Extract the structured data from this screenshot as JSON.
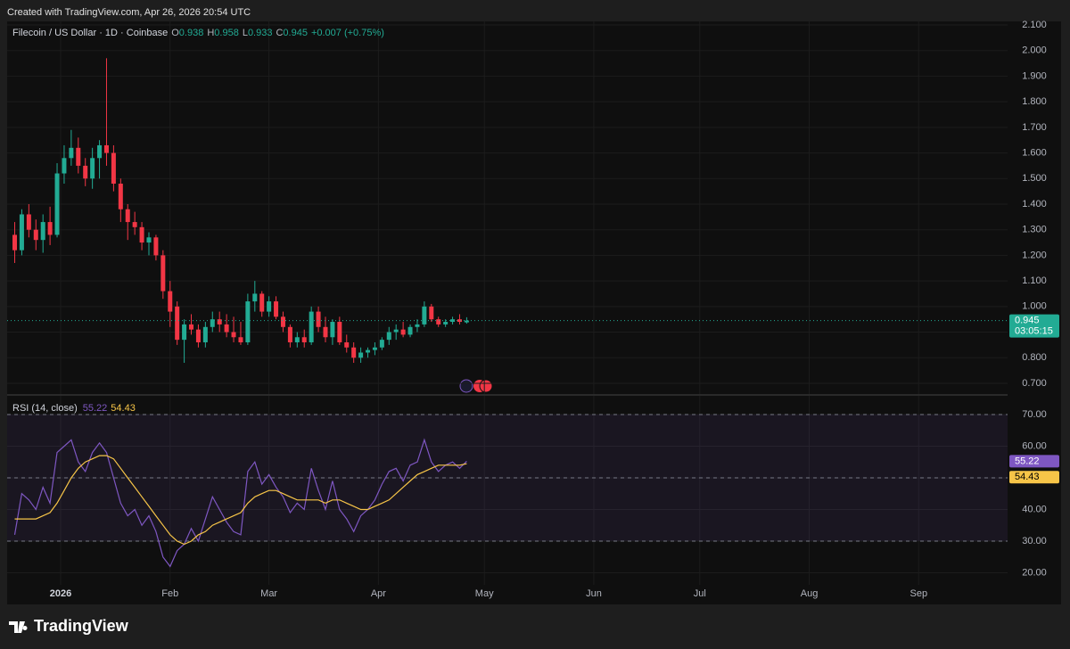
{
  "header": {
    "created": "Created with TradingView.com, Apr 26, 2026 20:54 UTC"
  },
  "footer": {
    "brand": "TradingView"
  },
  "chart_data": [
    {
      "type": "candlestick",
      "title": "Filecoin / US Dollar · 1D · Coinbase",
      "legend_keys": [
        "O",
        "H",
        "L",
        "C"
      ],
      "change": "+0.007 (+0.75%)",
      "countdown": "03:05:15",
      "x": [
        -12,
        -10,
        -8,
        -6,
        -4,
        -2,
        0,
        2,
        4,
        6,
        8,
        10,
        12,
        14,
        16,
        18,
        20,
        22,
        24,
        26,
        28,
        30,
        32,
        34,
        36,
        38,
        40,
        42,
        44,
        46,
        48,
        50,
        52,
        54,
        56,
        58,
        60,
        62,
        64,
        66,
        68,
        70,
        72,
        74,
        76,
        78,
        80,
        82,
        84,
        86,
        88,
        90,
        92,
        94,
        96,
        98,
        100,
        102,
        104,
        106,
        108,
        110,
        112,
        114,
        116
      ],
      "open": [
        1.28,
        1.22,
        1.36,
        1.3,
        1.26,
        1.33,
        1.28,
        1.52,
        1.58,
        1.62,
        1.55,
        1.5,
        1.58,
        1.63,
        1.6,
        1.48,
        1.38,
        1.33,
        1.31,
        1.25,
        1.27,
        1.2,
        1.06,
        1.0,
        0.87,
        0.93,
        0.91,
        0.86,
        0.92,
        0.95,
        0.93,
        0.9,
        0.88,
        0.86,
        1.02,
        1.05,
        0.98,
        1.02,
        0.96,
        0.92,
        0.86,
        0.88,
        0.86,
        0.98,
        0.92,
        0.88,
        0.94,
        0.86,
        0.84,
        0.8,
        0.82,
        0.83,
        0.84,
        0.87,
        0.9,
        0.91,
        0.89,
        0.92,
        0.93,
        1.0,
        0.95,
        0.93,
        0.94,
        0.95,
        0.938
      ],
      "high": [
        1.33,
        1.38,
        1.4,
        1.34,
        1.36,
        1.39,
        1.56,
        1.63,
        1.69,
        1.66,
        1.58,
        1.62,
        1.65,
        1.97,
        1.63,
        1.5,
        1.4,
        1.37,
        1.33,
        1.29,
        1.28,
        1.22,
        1.1,
        1.02,
        0.95,
        0.97,
        0.93,
        0.94,
        0.98,
        0.98,
        0.97,
        0.96,
        0.94,
        1.05,
        1.1,
        1.06,
        1.04,
        1.04,
        0.98,
        0.93,
        0.9,
        0.91,
        1.0,
        1.0,
        0.96,
        0.95,
        0.96,
        0.89,
        0.86,
        0.84,
        0.84,
        0.86,
        0.88,
        0.92,
        0.93,
        0.94,
        0.93,
        0.95,
        1.02,
        1.01,
        0.96,
        0.95,
        0.96,
        0.97,
        0.958
      ],
      "low": [
        1.17,
        1.2,
        1.27,
        1.22,
        1.21,
        1.24,
        1.27,
        1.48,
        1.55,
        1.52,
        1.47,
        1.46,
        1.5,
        1.55,
        1.45,
        1.33,
        1.26,
        1.28,
        1.22,
        1.2,
        1.18,
        1.03,
        0.92,
        0.85,
        0.78,
        0.89,
        0.84,
        0.84,
        0.9,
        0.9,
        0.88,
        0.86,
        0.85,
        0.85,
        0.98,
        0.96,
        0.96,
        0.95,
        0.9,
        0.84,
        0.84,
        0.84,
        0.85,
        0.9,
        0.86,
        0.85,
        0.85,
        0.82,
        0.78,
        0.78,
        0.8,
        0.81,
        0.83,
        0.85,
        0.87,
        0.88,
        0.88,
        0.9,
        0.92,
        0.94,
        0.92,
        0.92,
        0.93,
        0.93,
        0.933
      ],
      "close": [
        1.22,
        1.36,
        1.3,
        1.26,
        1.33,
        1.28,
        1.52,
        1.58,
        1.62,
        1.55,
        1.5,
        1.58,
        1.63,
        1.6,
        1.48,
        1.38,
        1.33,
        1.31,
        1.25,
        1.27,
        1.2,
        1.06,
        0.98,
        0.87,
        0.93,
        0.91,
        0.86,
        0.92,
        0.95,
        0.93,
        0.9,
        0.88,
        0.86,
        1.02,
        1.05,
        0.98,
        1.02,
        0.96,
        0.92,
        0.86,
        0.88,
        0.86,
        0.98,
        0.92,
        0.88,
        0.94,
        0.86,
        0.84,
        0.8,
        0.82,
        0.83,
        0.84,
        0.87,
        0.9,
        0.91,
        0.89,
        0.92,
        0.93,
        1.0,
        0.95,
        0.93,
        0.94,
        0.95,
        0.94,
        0.945
      ],
      "up_color": "#22ab94",
      "down_color": "#f23645",
      "xlim": [
        -14.15,
        269.18
      ],
      "xticks": [
        {
          "value": 1,
          "label": "2026"
        },
        {
          "value": 32,
          "label": "Feb"
        },
        {
          "value": 60,
          "label": "Mar"
        },
        {
          "value": 91,
          "label": "Apr"
        },
        {
          "value": 121,
          "label": "May"
        },
        {
          "value": 152,
          "label": "Jun"
        },
        {
          "value": 182,
          "label": "Jul"
        },
        {
          "value": 213,
          "label": "Aug"
        },
        {
          "value": 244,
          "label": "Sep"
        }
      ],
      "ylim": [
        0.658,
        2.114
      ],
      "yticks": [
        {
          "value": 0.7,
          "label": "0.700"
        },
        {
          "value": 0.8,
          "label": "0.800"
        },
        {
          "value": 0.9,
          "label": "0.900"
        },
        {
          "value": 1.0,
          "label": "1.000"
        },
        {
          "value": 1.1,
          "label": "1.100"
        },
        {
          "value": 1.2,
          "label": "1.200"
        },
        {
          "value": 1.3,
          "label": "1.300"
        },
        {
          "value": 1.4,
          "label": "1.400"
        },
        {
          "value": 1.5,
          "label": "1.500"
        },
        {
          "value": 1.6,
          "label": "1.600"
        },
        {
          "value": 1.7,
          "label": "1.700"
        },
        {
          "value": 1.8,
          "label": "1.800"
        },
        {
          "value": 1.9,
          "label": "1.900"
        },
        {
          "value": 2.0,
          "label": "2.000"
        },
        {
          "value": 2.1,
          "label": "2.100"
        }
      ],
      "grid": true
    },
    {
      "type": "line",
      "series": [
        {
          "name": "RSI (14, close)",
          "color": "#7e57c2",
          "values": [
            32,
            45,
            43,
            40,
            47,
            42,
            58,
            60,
            62,
            55,
            52,
            58,
            61,
            58,
            50,
            42,
            38,
            40,
            35,
            38,
            33,
            25,
            22,
            27,
            29,
            34,
            30,
            37,
            44,
            40,
            36,
            33,
            32,
            52,
            55,
            48,
            51,
            47,
            44,
            39,
            42,
            40,
            53,
            46,
            40,
            49,
            40,
            37,
            33,
            38,
            40,
            43,
            48,
            52,
            53,
            49,
            54,
            55,
            62,
            55,
            52,
            54,
            55,
            53,
            55.22
          ]
        },
        {
          "color": "#f7c548",
          "values": [
            37,
            37,
            37,
            37,
            38,
            39,
            42,
            46,
            50,
            53,
            55,
            56,
            57,
            57,
            56,
            53,
            50,
            47,
            44,
            41,
            38,
            35,
            32,
            30,
            29,
            30,
            32,
            33,
            35,
            36,
            37,
            38,
            39,
            42,
            44,
            45,
            46,
            46,
            45,
            44,
            43,
            43,
            43,
            43,
            42,
            43,
            43,
            42,
            41,
            40,
            40,
            41,
            42,
            43,
            45,
            47,
            49,
            51,
            52,
            53,
            54,
            54,
            54,
            54,
            54.43
          ]
        }
      ],
      "ylim": [
        16.2,
        75.9
      ],
      "yticks": [
        {
          "value": 20,
          "label": "20.00"
        },
        {
          "value": 30,
          "label": "30.00"
        },
        {
          "value": 40,
          "label": "40.00"
        },
        {
          "value": 50,
          "label": "50.00"
        },
        {
          "value": 60,
          "label": "60.00"
        },
        {
          "value": 70,
          "label": "70.00"
        }
      ],
      "levels": [
        30,
        50,
        70
      ],
      "band": [
        30,
        70
      ]
    }
  ]
}
